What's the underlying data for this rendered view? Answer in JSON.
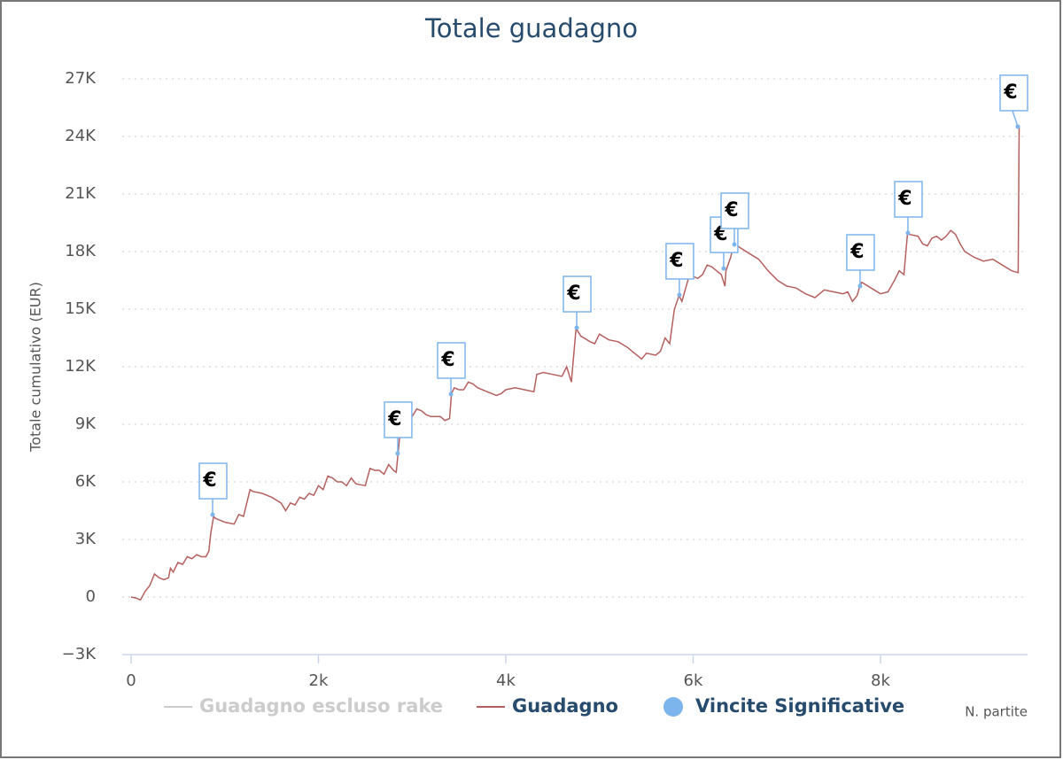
{
  "chart_data": {
    "type": "line",
    "title": "Totale guadagno",
    "x_label": "N. partite",
    "y_label": "Totale cumulativo (EUR)",
    "xlim": [
      0,
      9570
    ],
    "ylim": [
      -3000,
      27000
    ],
    "xticks": [
      0,
      {
        "value": 2000,
        "label": "2k"
      },
      {
        "value": 4000,
        "label": "4k"
      },
      {
        "value": 6000,
        "label": "6k"
      },
      {
        "value": 8000,
        "label": "8k"
      }
    ],
    "yticks": [
      {
        "value": -3000,
        "label": "−3K"
      },
      0,
      {
        "value": 3000,
        "label": "3K"
      },
      {
        "value": 6000,
        "label": "6K"
      },
      {
        "value": 9000,
        "label": "9K"
      },
      {
        "value": 12000,
        "label": "12K"
      },
      {
        "value": 15000,
        "label": "15K"
      },
      {
        "value": 18000,
        "label": "18K"
      },
      {
        "value": 21000,
        "label": "21K"
      },
      {
        "value": 24000,
        "label": "24K"
      },
      {
        "value": 27000,
        "label": "27K"
      }
    ],
    "grid": true,
    "legend": "bottom",
    "series": [
      {
        "name": "Guadagno escluso rake",
        "color": "#cccccc",
        "visible": false
      },
      {
        "name": "Guadagno",
        "color": "#b5605e",
        "x": [
          0,
          50,
          100,
          150,
          200,
          250,
          300,
          350,
          400,
          420,
          450,
          500,
          550,
          600,
          650,
          700,
          750,
          800,
          830,
          850,
          880,
          900,
          950,
          1000,
          1100,
          1150,
          1200,
          1270,
          1300,
          1400,
          1500,
          1600,
          1650,
          1700,
          1750,
          1800,
          1850,
          1900,
          1950,
          2000,
          2050,
          2100,
          2150,
          2200,
          2250,
          2300,
          2350,
          2400,
          2500,
          2550,
          2600,
          2650,
          2700,
          2750,
          2800,
          2830,
          2850,
          2870,
          2900,
          2950,
          3000,
          3050,
          3100,
          3150,
          3200,
          3300,
          3350,
          3400,
          3420,
          3450,
          3500,
          3550,
          3600,
          3650,
          3700,
          3800,
          3900,
          3950,
          4000,
          4100,
          4200,
          4300,
          4330,
          4400,
          4500,
          4600,
          4650,
          4700,
          4750,
          4800,
          4900,
          4950,
          5000,
          5100,
          5200,
          5300,
          5350,
          5450,
          5500,
          5600,
          5650,
          5700,
          5750,
          5800,
          5850,
          5880,
          5950,
          6000,
          6050,
          6100,
          6150,
          6200,
          6250,
          6300,
          6340,
          6350,
          6400,
          6430,
          6450,
          6500,
          6600,
          6700,
          6800,
          6900,
          7000,
          7100,
          7200,
          7300,
          7400,
          7500,
          7600,
          7650,
          7700,
          7750,
          7780,
          7800,
          7900,
          8000,
          8080,
          8150,
          8200,
          8250,
          8290,
          8300,
          8400,
          8450,
          8500,
          8550,
          8600,
          8650,
          8700,
          8750,
          8800,
          8850,
          8900,
          9000,
          9100,
          9200,
          9300,
          9400,
          9470,
          9480
        ],
        "values": [
          0,
          -50,
          -150,
          300,
          600,
          1200,
          1000,
          900,
          1000,
          1500,
          1300,
          1800,
          1700,
          2100,
          2000,
          2200,
          2100,
          2100,
          2400,
          3300,
          4200,
          4100,
          4000,
          3900,
          3800,
          4300,
          4200,
          5600,
          5500,
          5400,
          5200,
          4900,
          4500,
          4900,
          4800,
          5200,
          5100,
          5400,
          5300,
          5800,
          5600,
          6300,
          6200,
          6000,
          6000,
          5800,
          6200,
          5900,
          5800,
          6700,
          6600,
          6600,
          6400,
          6900,
          6600,
          6500,
          7500,
          8500,
          8700,
          9200,
          9400,
          9800,
          9700,
          9500,
          9400,
          9400,
          9200,
          9300,
          10600,
          10900,
          10800,
          10800,
          11200,
          11100,
          10900,
          10700,
          10500,
          10600,
          10800,
          10900,
          10800,
          10700,
          11600,
          11700,
          11600,
          11500,
          12000,
          11200,
          14000,
          13600,
          13300,
          13200,
          13700,
          13400,
          13300,
          13000,
          12800,
          12400,
          12700,
          12600,
          12800,
          13500,
          13200,
          15000,
          15700,
          15400,
          16600,
          16700,
          16600,
          16800,
          17300,
          17200,
          17000,
          16800,
          16200,
          17000,
          17700,
          18300,
          18400,
          18200,
          17900,
          17600,
          17000,
          16500,
          16200,
          16100,
          15800,
          15600,
          16000,
          15900,
          15800,
          15900,
          15400,
          15700,
          16200,
          16400,
          16100,
          15800,
          15900,
          16500,
          17000,
          16800,
          19000,
          18900,
          18800,
          18400,
          18300,
          18700,
          18800,
          18600,
          18800,
          19100,
          18900,
          18400,
          18000,
          17700,
          17500,
          17600,
          17300,
          17000,
          16900,
          24500
        ]
      },
      {
        "name": "Vincite Significative",
        "color": "#7cb5ec",
        "type": "scatter",
        "x": [
          870,
          2846,
          3414,
          4757,
          5853,
          6326,
          6440,
          7782,
          8293,
          9466
        ],
        "values": [
          4290,
          7480,
          10570,
          14030,
          15740,
          17120,
          18370,
          16200,
          18970,
          24510
        ],
        "point_labels": [
          "€",
          "€",
          "€",
          "€",
          "€",
          "€",
          "€",
          "€",
          "€",
          "€"
        ]
      }
    ]
  }
}
